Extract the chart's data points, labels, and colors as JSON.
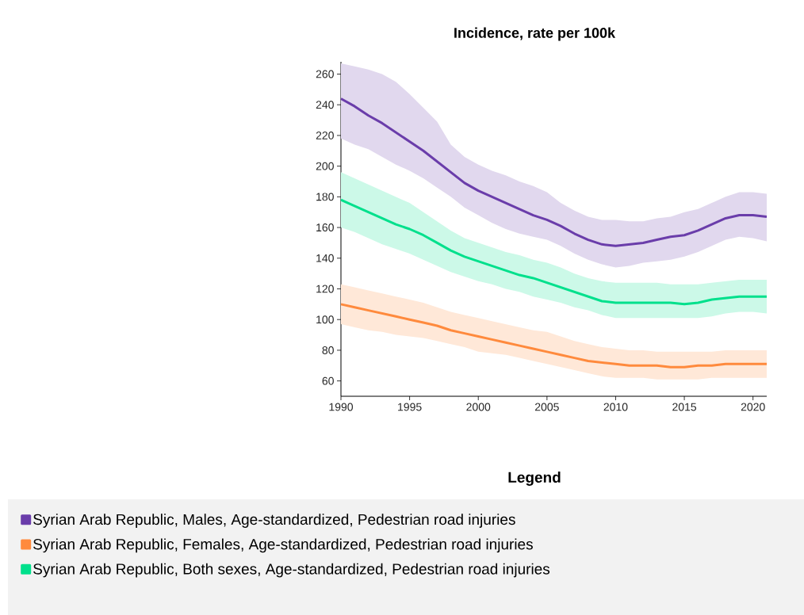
{
  "chart_data": {
    "type": "line",
    "title": "Incidence, rate per 100k",
    "legend_title": "Legend",
    "legend": "bottom",
    "marker": "none",
    "line_style": "solid",
    "grid": false,
    "x": [
      1990,
      1991,
      1992,
      1993,
      1994,
      1995,
      1996,
      1997,
      1998,
      1999,
      2000,
      2001,
      2002,
      2003,
      2004,
      2005,
      2006,
      2007,
      2008,
      2009,
      2010,
      2011,
      2012,
      2013,
      2014,
      2015,
      2016,
      2017,
      2018,
      2019,
      2020,
      2021
    ],
    "xlim": [
      1990,
      2021
    ],
    "xticks": [
      1990,
      1995,
      2000,
      2005,
      2010,
      2015,
      2020
    ],
    "ylim": [
      50,
      268
    ],
    "yticks": [
      60,
      80,
      100,
      120,
      140,
      160,
      180,
      200,
      220,
      240,
      260
    ],
    "series": [
      {
        "name": "Syrian Arab Republic, Males, Age-standardized, Pedestrian road injuries",
        "color": "#6a3daa",
        "values": [
          244,
          239,
          233,
          228,
          222,
          216,
          210,
          203,
          196,
          189,
          184,
          180,
          176,
          172,
          168,
          165,
          161,
          156,
          152,
          149,
          148,
          149,
          150,
          152,
          154,
          155,
          158,
          162,
          166,
          168,
          168,
          167
        ],
        "lower": [
          218,
          214,
          211,
          206,
          201,
          197,
          192,
          186,
          180,
          173,
          168,
          163,
          159,
          156,
          154,
          152,
          148,
          143,
          139,
          136,
          134,
          135,
          137,
          138,
          139,
          141,
          144,
          148,
          152,
          154,
          153,
          151
        ],
        "upper": [
          267,
          265,
          263,
          260,
          255,
          247,
          238,
          229,
          214,
          206,
          201,
          197,
          194,
          190,
          187,
          183,
          176,
          171,
          167,
          165,
          165,
          164,
          164,
          166,
          167,
          170,
          172,
          176,
          180,
          183,
          183,
          182
        ]
      },
      {
        "name": "Syrian Arab Republic, Females, Age-standardized, Pedestrian road injuries",
        "color": "#ff8a3d",
        "values": [
          110,
          108,
          106,
          104,
          102,
          100,
          98,
          96,
          93,
          91,
          89,
          87,
          85,
          83,
          81,
          79,
          77,
          75,
          73,
          72,
          71,
          70,
          70,
          70,
          69,
          69,
          70,
          70,
          71,
          71,
          71,
          71
        ],
        "lower": [
          97,
          95,
          93,
          92,
          90,
          89,
          88,
          86,
          84,
          82,
          79,
          78,
          77,
          75,
          73,
          71,
          69,
          67,
          65,
          63,
          62,
          62,
          62,
          61,
          61,
          61,
          61,
          62,
          62,
          62,
          62,
          62
        ],
        "upper": [
          123,
          121,
          119,
          117,
          115,
          113,
          111,
          108,
          105,
          103,
          101,
          99,
          97,
          95,
          93,
          92,
          89,
          86,
          84,
          82,
          81,
          80,
          80,
          79,
          79,
          79,
          79,
          79,
          80,
          80,
          80,
          80
        ]
      },
      {
        "name": "Syrian Arab Republic, Both sexes, Age-standardized, Pedestrian road injuries",
        "color": "#00e08c",
        "values": [
          178,
          174,
          170,
          166,
          162,
          159,
          155,
          150,
          145,
          141,
          138,
          135,
          132,
          129,
          127,
          124,
          121,
          118,
          115,
          112,
          111,
          111,
          111,
          111,
          111,
          110,
          111,
          113,
          114,
          115,
          115,
          115
        ],
        "lower": [
          160,
          157,
          153,
          149,
          146,
          143,
          139,
          135,
          131,
          128,
          125,
          123,
          120,
          118,
          115,
          113,
          111,
          108,
          106,
          103,
          101,
          101,
          101,
          101,
          101,
          101,
          101,
          102,
          104,
          105,
          105,
          104
        ],
        "upper": [
          196,
          192,
          188,
          184,
          180,
          176,
          170,
          164,
          158,
          153,
          150,
          147,
          144,
          142,
          139,
          137,
          134,
          130,
          127,
          125,
          124,
          124,
          124,
          124,
          123,
          123,
          123,
          124,
          125,
          126,
          126,
          126
        ]
      }
    ]
  }
}
